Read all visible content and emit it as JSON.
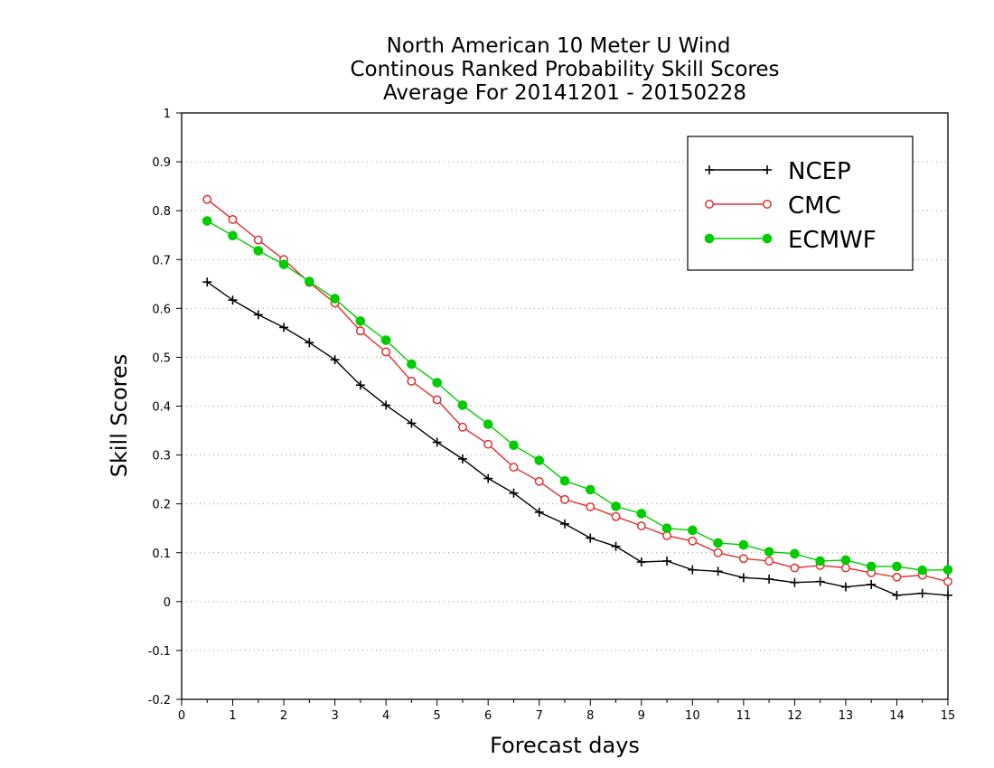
{
  "chart_data": {
    "type": "line",
    "title": [
      "North American 10 Meter U Wind",
      "Continous Ranked Probability Skill Scores",
      "Average For 20141201 - 20150228"
    ],
    "xlabel": "Forecast days",
    "ylabel": "Skill Scores",
    "xlim": [
      0,
      15
    ],
    "ylim": [
      -0.2,
      1
    ],
    "xticks": [
      0,
      1,
      2,
      3,
      4,
      5,
      6,
      7,
      8,
      9,
      10,
      11,
      12,
      13,
      14,
      15
    ],
    "xtick_labels": [
      "0",
      "1",
      "2",
      "3",
      "4",
      "5",
      "6",
      "7",
      "8",
      "9",
      "10",
      "11",
      "12",
      "13",
      "14",
      "15"
    ],
    "yticks": [
      -0.2,
      -0.1,
      0,
      0.1,
      0.2,
      0.3,
      0.4,
      0.5,
      0.6,
      0.7,
      0.8,
      0.9,
      1
    ],
    "ytick_labels": [
      "-0.2",
      "-0.1",
      "0",
      "0.1",
      "0.2",
      "0.3",
      "0.4",
      "0.5",
      "0.6",
      "0.7",
      "0.8",
      "0.9",
      "1"
    ],
    "grid": "horizontal dotted",
    "legend_position": "top-right",
    "x": [
      0.5,
      1,
      1.5,
      2,
      2.5,
      3,
      3.5,
      4,
      4.5,
      5,
      5.5,
      6,
      6.5,
      7,
      7.5,
      8,
      8.5,
      9,
      9.5,
      10,
      10.5,
      11,
      11.5,
      12,
      12.5,
      13,
      13.5,
      14,
      14.5,
      15
    ],
    "series": [
      {
        "name": "NCEP",
        "color": "#000000",
        "marker": "plus",
        "values": [
          0.654,
          0.617,
          0.587,
          0.561,
          0.53,
          0.495,
          0.443,
          0.402,
          0.365,
          0.326,
          0.292,
          0.252,
          0.222,
          0.183,
          0.159,
          0.13,
          0.113,
          0.081,
          0.083,
          0.065,
          0.062,
          0.049,
          0.046,
          0.039,
          0.041,
          0.03,
          0.035,
          0.013,
          0.017,
          0.013
        ]
      },
      {
        "name": "CMC",
        "color": "#e03030",
        "marker": "open-circle",
        "values": [
          0.823,
          0.782,
          0.74,
          0.7,
          0.653,
          0.611,
          0.554,
          0.511,
          0.451,
          0.413,
          0.357,
          0.322,
          0.275,
          0.246,
          0.209,
          0.194,
          0.174,
          0.155,
          0.135,
          0.124,
          0.1,
          0.088,
          0.083,
          0.069,
          0.074,
          0.069,
          0.059,
          0.05,
          0.054,
          0.041
        ]
      },
      {
        "name": "ECMWF",
        "color": "#00cc00",
        "marker": "filled-circle",
        "values": [
          0.779,
          0.749,
          0.718,
          0.69,
          0.655,
          0.62,
          0.574,
          0.535,
          0.486,
          0.448,
          0.402,
          0.363,
          0.32,
          0.289,
          0.247,
          0.229,
          0.195,
          0.18,
          0.15,
          0.146,
          0.12,
          0.116,
          0.102,
          0.098,
          0.083,
          0.085,
          0.072,
          0.072,
          0.064,
          0.065
        ]
      }
    ]
  }
}
